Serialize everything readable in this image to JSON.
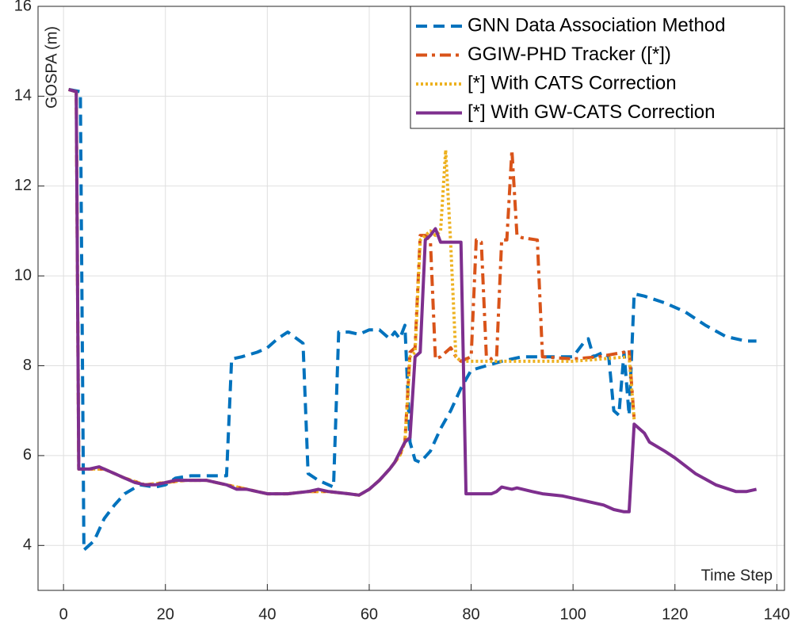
{
  "chart_data": {
    "type": "line",
    "xlabel": "Time Step",
    "ylabel": "GOSPA (m)",
    "xlim": [
      -5,
      141.5
    ],
    "ylim": [
      3,
      16
    ],
    "xticks": [
      0,
      20,
      40,
      60,
      80,
      100,
      120,
      140
    ],
    "yticks": [
      4,
      6,
      8,
      10,
      12,
      14,
      16
    ],
    "grid": true,
    "legend": "upper right",
    "series": [
      {
        "name": "GNN Data Association Method",
        "color": "#0072BD",
        "style": "dashed",
        "x": [
          1,
          3.3,
          4,
          6,
          8,
          10,
          12,
          15,
          18,
          20,
          22,
          25,
          28,
          32,
          33,
          35,
          38,
          40,
          42,
          44,
          47,
          48,
          50,
          53,
          54,
          56,
          58,
          60,
          62,
          64,
          65,
          66,
          67,
          68,
          69,
          70,
          72,
          74,
          76,
          78,
          80,
          83,
          86,
          90,
          95,
          100,
          102,
          103,
          104,
          106,
          107,
          108,
          109,
          110,
          111,
          112,
          114,
          118,
          122,
          126,
          130,
          134,
          136
        ],
        "values": [
          14.15,
          14.1,
          3.9,
          4.1,
          4.6,
          4.9,
          5.15,
          5.35,
          5.3,
          5.35,
          5.5,
          5.55,
          5.55,
          5.55,
          8.15,
          8.2,
          8.3,
          8.4,
          8.6,
          8.75,
          8.5,
          5.6,
          5.45,
          5.3,
          8.75,
          8.75,
          8.7,
          8.8,
          8.8,
          8.6,
          8.75,
          8.6,
          8.9,
          6.3,
          5.9,
          5.85,
          6.1,
          6.6,
          7.0,
          7.5,
          7.9,
          8.0,
          8.1,
          8.2,
          8.2,
          8.2,
          8.5,
          8.6,
          8.2,
          8.3,
          8.2,
          7.0,
          6.9,
          8.3,
          6.9,
          9.6,
          9.55,
          9.4,
          9.2,
          8.9,
          8.65,
          8.55,
          8.55
        ]
      },
      {
        "name": "GGIW-PHD Tracker ([*])",
        "color": "#D95319",
        "style": "dashdot",
        "x": [
          1,
          2.5,
          3,
          5,
          8,
          12,
          16,
          20,
          24,
          28,
          32,
          36,
          40,
          44,
          48,
          52,
          56,
          58,
          60,
          62,
          64,
          66,
          67,
          68,
          69,
          70,
          71,
          72,
          73,
          74,
          76,
          77,
          78,
          79,
          80,
          81,
          82,
          83,
          84,
          85,
          86,
          87,
          88,
          89,
          90,
          93,
          94,
          100,
          105,
          110,
          111,
          112
        ],
        "values": [
          14.15,
          14.1,
          5.7,
          5.7,
          5.7,
          5.5,
          5.35,
          5.4,
          5.45,
          5.45,
          5.35,
          5.25,
          5.15,
          5.15,
          5.2,
          5.2,
          5.15,
          5.12,
          5.25,
          5.45,
          5.7,
          6.0,
          6.3,
          8.3,
          8.4,
          10.9,
          10.9,
          10.8,
          8.15,
          8.2,
          8.4,
          8.2,
          8.1,
          8.15,
          8.2,
          10.8,
          10.75,
          8.2,
          8.15,
          8.2,
          10.8,
          10.8,
          12.8,
          10.9,
          10.85,
          10.8,
          8.2,
          8.15,
          8.2,
          8.3,
          8.35,
          6.8
        ]
      },
      {
        "name": "[*] With CATS Correction",
        "color": "#EDB120",
        "style": "dotted",
        "x": [
          1,
          2.5,
          3,
          5,
          8,
          12,
          16,
          20,
          24,
          28,
          32,
          36,
          40,
          44,
          48,
          52,
          56,
          58,
          60,
          62,
          64,
          66,
          67,
          68,
          69,
          70,
          71,
          72,
          73,
          74,
          75,
          76,
          77,
          78,
          80,
          90,
          100,
          111,
          112
        ],
        "values": [
          14.15,
          14.1,
          5.7,
          5.7,
          5.7,
          5.5,
          5.35,
          5.4,
          5.45,
          5.45,
          5.35,
          5.25,
          5.15,
          5.15,
          5.2,
          5.2,
          5.15,
          5.12,
          5.25,
          5.45,
          5.7,
          6.0,
          6.3,
          8.2,
          8.3,
          10.8,
          10.9,
          11.0,
          10.9,
          11.0,
          12.8,
          10.7,
          8.2,
          8.1,
          8.1,
          8.1,
          8.1,
          8.2,
          6.8
        ]
      },
      {
        "name": "[*] With GW-CATS Correction",
        "color": "#7E2F8E",
        "style": "solid",
        "x": [
          1,
          2.5,
          3,
          5,
          7,
          8,
          10,
          12,
          14,
          16,
          18,
          20,
          22,
          24,
          28,
          30,
          32,
          34,
          36,
          38,
          40,
          44,
          48,
          50,
          52,
          56,
          58,
          60,
          62,
          64,
          65,
          67,
          68,
          69,
          70,
          71,
          72,
          73,
          74,
          76,
          78,
          79,
          82,
          84,
          85,
          86,
          88,
          89,
          92,
          94,
          98,
          102,
          106,
          108,
          110,
          111,
          112,
          113,
          114,
          115,
          118,
          120,
          124,
          128,
          132,
          134,
          136
        ],
        "values": [
          14.15,
          14.1,
          5.7,
          5.7,
          5.75,
          5.7,
          5.6,
          5.5,
          5.4,
          5.35,
          5.35,
          5.4,
          5.45,
          5.45,
          5.45,
          5.4,
          5.35,
          5.25,
          5.25,
          5.2,
          5.15,
          5.15,
          5.2,
          5.25,
          5.2,
          5.15,
          5.12,
          5.25,
          5.45,
          5.7,
          5.85,
          6.3,
          6.4,
          8.2,
          8.3,
          10.8,
          10.9,
          11.05,
          10.75,
          10.75,
          10.75,
          5.15,
          5.15,
          5.15,
          5.2,
          5.3,
          5.25,
          5.28,
          5.2,
          5.15,
          5.1,
          5.0,
          4.9,
          4.8,
          4.75,
          4.75,
          6.7,
          6.6,
          6.5,
          6.3,
          6.1,
          5.95,
          5.6,
          5.35,
          5.2,
          5.2,
          5.25
        ]
      }
    ]
  }
}
